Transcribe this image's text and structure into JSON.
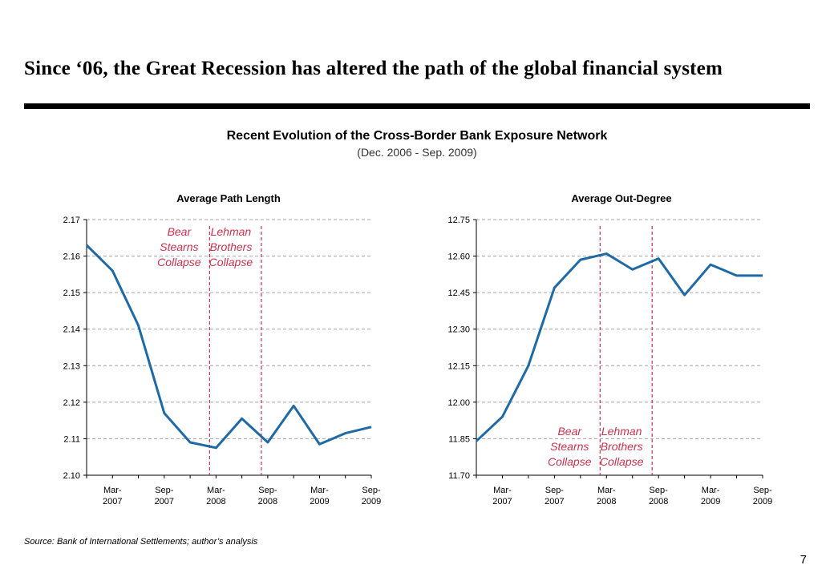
{
  "slide": {
    "title": "Since ‘06, the Great Recession has altered the path of the global financial system",
    "heading": "Recent Evolution of the Cross-Border Bank Exposure Network",
    "subheading": "(Dec. 2006 - Sep. 2009)",
    "source": "Source: Bank of International Settlements; author’s analysis",
    "page_number": "7"
  },
  "colors": {
    "line": "#1f6aa5",
    "event": "#c8334e",
    "grid": "#a6a6a6",
    "rule": "#000000"
  },
  "chart_data": [
    {
      "type": "line",
      "title": "Average Path Length",
      "x": [
        "Dec-2006",
        "Mar-2007",
        "Jun-2007",
        "Sep-2007",
        "Dec-2007",
        "Mar-2008",
        "Jun-2008",
        "Sep-2008",
        "Dec-2008",
        "Mar-2009",
        "Jun-2009",
        "Sep-2009"
      ],
      "values": [
        2.163,
        2.156,
        2.141,
        2.117,
        2.109,
        2.1075,
        2.1155,
        2.109,
        2.119,
        2.1085,
        2.1115,
        2.1132
      ],
      "ylim": [
        2.1,
        2.17
      ],
      "yticks": [
        "2.10",
        "2.11",
        "2.12",
        "2.13",
        "2.14",
        "2.15",
        "2.16",
        "2.17"
      ],
      "xtick_labels": [
        {
          "top": "Mar-",
          "bottom": "2007",
          "at": "Mar-2007"
        },
        {
          "top": "Sep-",
          "bottom": "2007",
          "at": "Sep-2007"
        },
        {
          "top": "Mar-",
          "bottom": "2008",
          "at": "Mar-2008"
        },
        {
          "top": "Sep-",
          "bottom": "2008",
          "at": "Sep-2008"
        },
        {
          "top": "Mar-",
          "bottom": "2009",
          "at": "Mar-2009"
        },
        {
          "top": "Sep-",
          "bottom": "2009",
          "at": "Sep-2009"
        }
      ],
      "events": [
        {
          "at": "Mar-2008",
          "label": [
            "Bear",
            "Stearns",
            "Collapse"
          ],
          "label_pos": "top"
        },
        {
          "at": "Sep-2008",
          "label": [
            "Lehman",
            "Brothers",
            "Collapse"
          ],
          "label_pos": "top"
        }
      ],
      "grid": true
    },
    {
      "type": "line",
      "title": "Average Out-Degree",
      "x": [
        "Dec-2006",
        "Mar-2007",
        "Jun-2007",
        "Sep-2007",
        "Dec-2007",
        "Mar-2008",
        "Jun-2008",
        "Sep-2008",
        "Dec-2008",
        "Mar-2009",
        "Jun-2009",
        "Sep-2009"
      ],
      "values": [
        11.84,
        11.94,
        12.15,
        12.47,
        12.585,
        12.61,
        12.545,
        12.59,
        12.44,
        12.565,
        12.52,
        12.52
      ],
      "ylim": [
        11.7,
        12.75
      ],
      "yticks": [
        "11.70",
        "11.85",
        "12.00",
        "12.15",
        "12.30",
        "12.45",
        "12.60",
        "12.75"
      ],
      "xtick_labels": [
        {
          "top": "Mar-",
          "bottom": "2007",
          "at": "Mar-2007"
        },
        {
          "top": "Sep-",
          "bottom": "2007",
          "at": "Sep-2007"
        },
        {
          "top": "Mar-",
          "bottom": "2008",
          "at": "Mar-2008"
        },
        {
          "top": "Sep-",
          "bottom": "2008",
          "at": "Sep-2008"
        },
        {
          "top": "Mar-",
          "bottom": "2009",
          "at": "Mar-2009"
        },
        {
          "top": "Sep-",
          "bottom": "2009",
          "at": "Sep-2009"
        }
      ],
      "events": [
        {
          "at": "Mar-2008",
          "label": [
            "Bear",
            "Stearns",
            "Collapse"
          ],
          "label_pos": "bottom"
        },
        {
          "at": "Sep-2008",
          "label": [
            "Lehman",
            "Brothers",
            "Collapse"
          ],
          "label_pos": "bottom"
        }
      ],
      "grid": true
    }
  ]
}
